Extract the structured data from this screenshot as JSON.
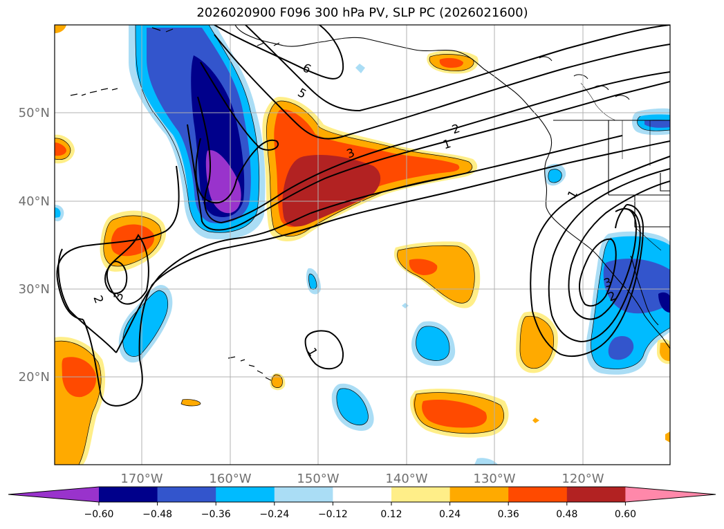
{
  "title": "2026020900 F096 300 hPa PV, SLP PC (2026021600)",
  "lon_labels": [
    "170°W",
    "160°W",
    "150°W",
    "140°W",
    "130°W",
    "120°W"
  ],
  "lat_labels": [
    "50°N",
    "40°N",
    "30°N",
    "20°N"
  ],
  "colorbar": {
    "colors": [
      "#9933cc",
      "#00008b",
      "#3355cc",
      "#00bbff",
      "#aaddf5",
      "#ffffff",
      "#ffee88",
      "#ffaa00",
      "#ff4a00",
      "#b22222",
      "#ff88aa"
    ],
    "tick_labels": [
      "−0.60",
      "−0.48",
      "−0.36",
      "−0.24",
      "−0.12",
      "0.12",
      "0.24",
      "0.36",
      "0.48",
      "0.60"
    ]
  },
  "contour_labels": [
    "6",
    "5",
    "2",
    "1",
    "3",
    "1",
    "3",
    "2",
    "1",
    "3",
    "2"
  ]
}
